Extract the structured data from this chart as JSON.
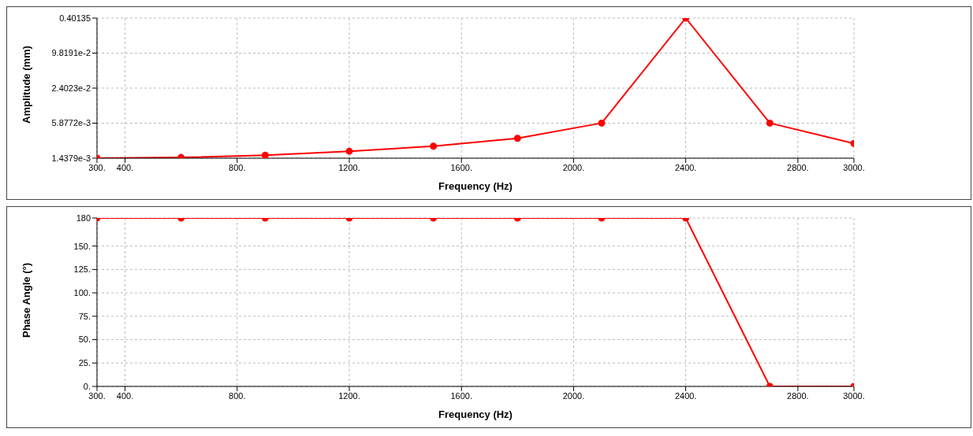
{
  "chart_data": [
    {
      "type": "line",
      "xlabel": "Frequency (Hz)",
      "ylabel": "Amplitude (mm)",
      "log": "y",
      "grid": true,
      "marker": "circle",
      "line_style": "solid",
      "x": [
        300,
        600,
        900,
        1200,
        1500,
        1800,
        2100,
        2400,
        2700,
        3000
      ],
      "series": [
        {
          "color": "#ff0000",
          "values": [
            0.0014379,
            0.00148,
            0.00162,
            0.0019,
            0.00233,
            0.0032,
            0.0059,
            0.40135,
            0.0059,
            0.0026
          ]
        }
      ],
      "xlim": [
        300,
        3000
      ],
      "xticks": [
        {
          "value": 300,
          "label": "300."
        },
        {
          "value": 400,
          "label": "400."
        },
        {
          "value": 800,
          "label": "800."
        },
        {
          "value": 1200,
          "label": "1200."
        },
        {
          "value": 1600,
          "label": "1600."
        },
        {
          "value": 2000,
          "label": "2000."
        },
        {
          "value": 2400,
          "label": "2400."
        },
        {
          "value": 2800,
          "label": "2800."
        },
        {
          "value": 3000,
          "label": "3000."
        }
      ],
      "ylim": [
        0.0014379,
        0.40135
      ],
      "yticks": [
        {
          "value": 0.0014379,
          "label": "1.4379e-3"
        },
        {
          "value": 0.0058772,
          "label": "5.8772e-3"
        },
        {
          "value": 0.024023,
          "label": "2.4023e-2"
        },
        {
          "value": 0.098191,
          "label": "9.8191e-2"
        },
        {
          "value": 0.40135,
          "label": "0.40135"
        }
      ]
    },
    {
      "type": "line",
      "xlabel": "Frequency (Hz)",
      "ylabel": "Phase Angle (°)",
      "grid": true,
      "marker": "circle",
      "line_style": "solid",
      "x": [
        300,
        600,
        900,
        1200,
        1500,
        1800,
        2100,
        2400,
        2700,
        3000
      ],
      "series": [
        {
          "color": "#ff0000",
          "values": [
            180,
            180,
            180,
            180,
            180,
            180,
            180,
            180,
            0,
            0
          ]
        }
      ],
      "xlim": [
        300,
        3000
      ],
      "xticks": [
        {
          "value": 300,
          "label": "300."
        },
        {
          "value": 400,
          "label": "400."
        },
        {
          "value": 800,
          "label": "800."
        },
        {
          "value": 1200,
          "label": "1200."
        },
        {
          "value": 1600,
          "label": "1600."
        },
        {
          "value": 2000,
          "label": "2000."
        },
        {
          "value": 2400,
          "label": "2400."
        },
        {
          "value": 2800,
          "label": "2800."
        },
        {
          "value": 3000,
          "label": "3000."
        }
      ],
      "ylim": [
        0,
        180
      ],
      "yticks": [
        {
          "value": 0,
          "label": "0."
        },
        {
          "value": 25,
          "label": "25."
        },
        {
          "value": 50,
          "label": "50."
        },
        {
          "value": 75,
          "label": "75."
        },
        {
          "value": 100,
          "label": "100."
        },
        {
          "value": 125,
          "label": "125."
        },
        {
          "value": 150,
          "label": "150."
        },
        180
      ]
    }
  ]
}
